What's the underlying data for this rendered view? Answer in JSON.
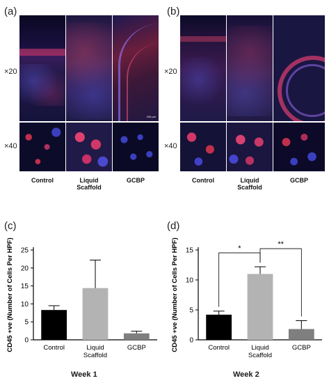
{
  "figure": {
    "panels": {
      "a": "(a)",
      "b": "(b)",
      "c": "(c)",
      "d": "(d)"
    },
    "magnifications": {
      "low": "×20",
      "high": "×40"
    },
    "columns": [
      "Control",
      "Liquid\nScaffold",
      "GCBP"
    ],
    "column_labels": {
      "control": "Control",
      "liquid_1": "Liquid",
      "liquid_2": "Scaffold",
      "gcbp": "GCBP"
    },
    "scale_bar_text": "100 µm",
    "week1_label": "Week 1",
    "week2_label": "Week 2"
  },
  "colors": {
    "control_bar": "#000000",
    "liquid_bar": "#b3b3b3",
    "gcbp_bar": "#7f7f7f",
    "tissue_red": "#c0304a",
    "nuclei_blue": "#3b3fbf",
    "background_dark": "#05050f"
  },
  "chart_data": [
    {
      "type": "bar",
      "panel": "(c)",
      "categories": [
        "Control",
        "Liquid Scaffold",
        "GCBP"
      ],
      "values": [
        8.3,
        14.4,
        1.8
      ],
      "errors": [
        1.2,
        7.8,
        0.6
      ],
      "ylabel": "CD45 +ve (Number of Cells Per HPF)",
      "ylim": [
        0,
        25
      ],
      "yticks": [
        0,
        5,
        10,
        15,
        20,
        25
      ],
      "xlabel": "Week 1",
      "grid": false
    },
    {
      "type": "bar",
      "panel": "(d)",
      "categories": [
        "Control",
        "Liquid Scaffold",
        "GCBP"
      ],
      "values": [
        4.2,
        11.0,
        1.8
      ],
      "errors": [
        0.6,
        1.2,
        1.4
      ],
      "ylabel": "CD45 +ve (Number of Cells Per HPF)",
      "ylim": [
        0,
        15
      ],
      "yticks": [
        0,
        5,
        10,
        15
      ],
      "xlabel": "Week 2",
      "grid": false,
      "significance": [
        {
          "from": "Control",
          "to": "Liquid Scaffold",
          "label": "*"
        },
        {
          "from": "Liquid Scaffold",
          "to": "GCBP",
          "label": "**"
        }
      ]
    }
  ]
}
